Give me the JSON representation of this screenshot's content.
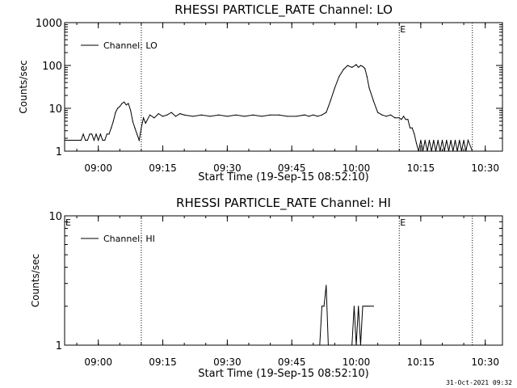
{
  "footer": {
    "timestamp": "31-Oct-2021 09:32"
  },
  "chart_data": [
    {
      "type": "line",
      "title": "RHESSI PARTICLE_RATE Channel: LO",
      "xlabel": "Start Time (19-Sep-15 08:52:10)",
      "ylabel": "Counts/sec",
      "yscale": "log",
      "ylim": [
        1,
        1000
      ],
      "yticks": [
        1,
        10,
        100,
        1000
      ],
      "ytick_labels": [
        "1",
        "10",
        "100",
        "1000"
      ],
      "xlim": [
        "08:52:10",
        "10:34:00"
      ],
      "xticks": [
        "09:00",
        "09:15",
        "09:30",
        "09:45",
        "10:00",
        "10:15",
        "10:30"
      ],
      "legend": {
        "position": "top-left",
        "entries": [
          "Channel: LO"
        ]
      },
      "grid": false,
      "vlines": [
        "09:10:00",
        "10:10:00",
        "10:27:00"
      ],
      "markers": [
        {
          "label": "E",
          "x": "10:10:00"
        }
      ],
      "series": [
        {
          "name": "Channel: LO",
          "x": [
            "08:52:10",
            "08:56:00",
            "08:56:30",
            "08:57:00",
            "08:57:30",
            "08:58:00",
            "08:58:30",
            "08:59:00",
            "08:59:30",
            "09:00:00",
            "09:00:30",
            "09:01:00",
            "09:01:30",
            "09:02:00",
            "09:02:30",
            "09:03:00",
            "09:03:30",
            "09:04:00",
            "09:04:30",
            "09:05:00",
            "09:05:30",
            "09:06:00",
            "09:06:30",
            "09:07:00",
            "09:07:30",
            "09:08:00",
            "09:08:30",
            "09:09:00",
            "09:09:30",
            "09:10:00",
            "09:10:30",
            "09:11:00",
            "09:12:00",
            "09:13:00",
            "09:14:00",
            "09:15:00",
            "09:16:00",
            "09:17:00",
            "09:18:00",
            "09:19:00",
            "09:20:00",
            "09:22:00",
            "09:24:00",
            "09:26:00",
            "09:28:00",
            "09:30:00",
            "09:32:00",
            "09:34:00",
            "09:36:00",
            "09:38:00",
            "09:40:00",
            "09:42:00",
            "09:44:00",
            "09:46:00",
            "09:48:00",
            "09:49:00",
            "09:50:00",
            "09:51:00",
            "09:52:00",
            "09:53:00",
            "09:54:00",
            "09:55:00",
            "09:56:00",
            "09:57:00",
            "09:58:00",
            "09:59:00",
            "10:00:00",
            "10:00:30",
            "10:01:00",
            "10:01:30",
            "10:02:00",
            "10:02:30",
            "10:03:00",
            "10:04:00",
            "10:05:00",
            "10:06:00",
            "10:07:00",
            "10:08:00",
            "10:09:00",
            "10:10:00",
            "10:10:30",
            "10:11:00",
            "10:11:30",
            "10:12:00",
            "10:12:30",
            "10:13:00",
            "10:13:30",
            "10:14:00",
            "10:14:30",
            "10:15:00",
            "10:15:30",
            "10:16:00",
            "10:16:30",
            "10:17:00",
            "10:17:30",
            "10:18:00",
            "10:18:30",
            "10:19:00",
            "10:19:30",
            "10:20:00",
            "10:20:30",
            "10:21:00",
            "10:21:30",
            "10:22:00",
            "10:22:30",
            "10:23:00",
            "10:23:30",
            "10:24:00",
            "10:24:30",
            "10:25:00",
            "10:25:30",
            "10:26:00",
            "10:27:00"
          ],
          "values": [
            1.8,
            1.8,
            2.5,
            1.8,
            1.8,
            2.5,
            2.5,
            1.8,
            2.5,
            1.8,
            2.5,
            1.8,
            1.8,
            2.5,
            2.5,
            3.5,
            5,
            8,
            10,
            11,
            13,
            14,
            12,
            13,
            9,
            5,
            3.5,
            2.5,
            1.8,
            3.5,
            6,
            4.5,
            7,
            6,
            7.5,
            6.5,
            7,
            8,
            6.5,
            7.5,
            7,
            6.5,
            7,
            6.5,
            7,
            6.5,
            7,
            6.5,
            7,
            6.5,
            7,
            7,
            6.5,
            6.5,
            7,
            6.5,
            7,
            6.5,
            7,
            8,
            15,
            30,
            55,
            80,
            100,
            90,
            105,
            90,
            100,
            95,
            85,
            55,
            30,
            15,
            8,
            7,
            6.5,
            7,
            6,
            6,
            5.5,
            6.5,
            5.5,
            5.5,
            3.5,
            3.5,
            2.5,
            1.5,
            1,
            1.8,
            1,
            1.8,
            1,
            1.8,
            1,
            1.8,
            1,
            1.8,
            1,
            1.8,
            1,
            1.8,
            1,
            1.8,
            1,
            1.8,
            1,
            1.8,
            1,
            1.8,
            1,
            1.8,
            1
          ]
        }
      ]
    },
    {
      "type": "line",
      "title": "RHESSI PARTICLE_RATE Channel: HI",
      "xlabel": "Start Time (19-Sep-15 08:52:10)",
      "ylabel": "Counts/sec",
      "yscale": "log",
      "ylim": [
        1,
        10
      ],
      "yticks": [
        1,
        10
      ],
      "ytick_labels": [
        "1",
        "10"
      ],
      "xlim": [
        "08:52:10",
        "10:34:00"
      ],
      "xticks": [
        "09:00",
        "09:15",
        "09:30",
        "09:45",
        "10:00",
        "10:15",
        "10:30"
      ],
      "legend": {
        "position": "top-left",
        "entries": [
          "Channel: HI"
        ]
      },
      "grid": false,
      "vlines": [
        "09:10:00",
        "10:10:00",
        "10:27:00"
      ],
      "markers": [
        {
          "label": "E",
          "x": "08:52:10"
        },
        {
          "label": "E",
          "x": "10:10:00"
        }
      ],
      "series": [
        {
          "name": "Channel: HI",
          "x": [
            "09:51:00",
            "09:51:30",
            "09:52:00",
            "09:52:30",
            "09:53:00",
            "09:53:30",
            "09:54:00",
            "09:54:30",
            "09:55:00",
            "09:56:00",
            "09:59:00",
            "09:59:30",
            "10:00:00",
            "10:00:30",
            "10:01:00",
            "10:01:30",
            "10:02:00",
            "10:02:30",
            "10:03:00",
            "10:04:00"
          ],
          "values": [
            1,
            1,
            2,
            2,
            2.9,
            1,
            1,
            1,
            1,
            1,
            1,
            2,
            1,
            2,
            1,
            2,
            2,
            2,
            2,
            2
          ]
        }
      ]
    }
  ]
}
